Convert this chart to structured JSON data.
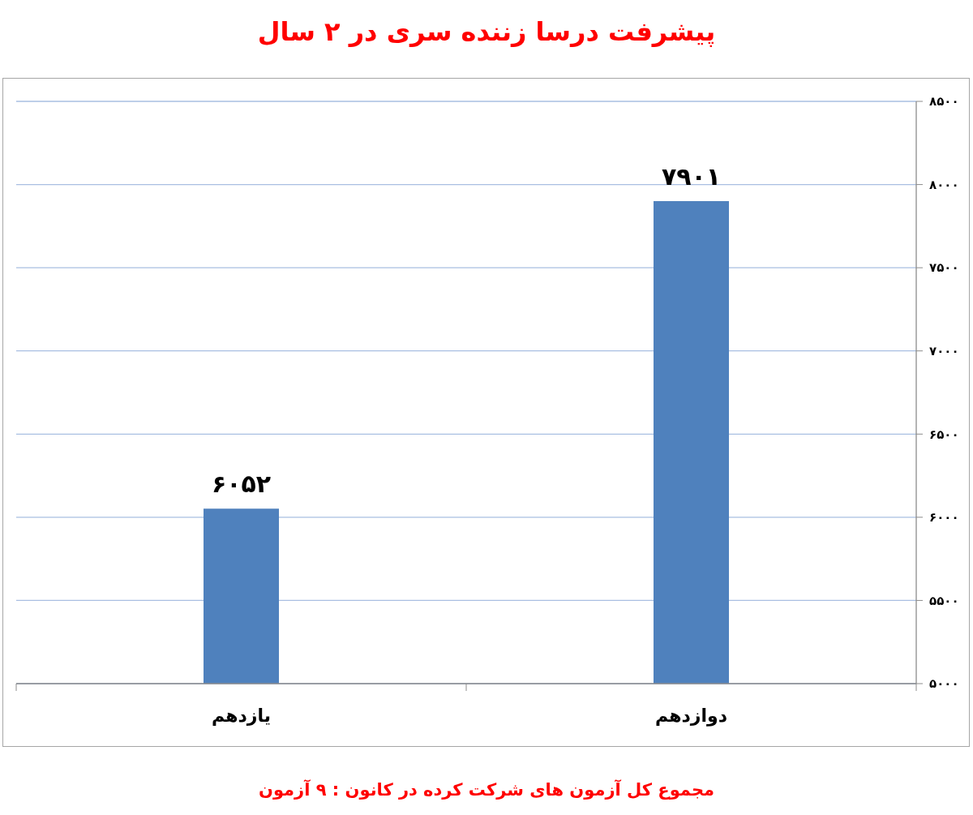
{
  "chart_data": {
    "type": "bar",
    "title": "پیشرفت درسا زننده سری در ۲ سال",
    "categories": [
      "یازدهم",
      "دوازدهم"
    ],
    "values": [
      6052,
      7901
    ],
    "value_labels": [
      "۶۰۵۲",
      "۷۹۰۱"
    ],
    "color": "#4f81bd",
    "ylim": [
      5000,
      8500
    ],
    "yticks": [
      {
        "value": 5000,
        "label": "۵۰۰۰"
      },
      {
        "value": 5500,
        "label": "۵۵۰۰"
      },
      {
        "value": 6000,
        "label": "۶۰۰۰"
      },
      {
        "value": 6500,
        "label": "۶۵۰۰"
      },
      {
        "value": 7000,
        "label": "۷۰۰۰"
      },
      {
        "value": 7500,
        "label": "۷۵۰۰"
      },
      {
        "value": 8000,
        "label": "۸۰۰۰"
      },
      {
        "value": 8500,
        "label": "۸۵۰۰"
      }
    ],
    "grid": "y",
    "annotations": [
      "مجموع کل آزمون های شرکت کرده در کانون : ۹ آزمون"
    ]
  }
}
